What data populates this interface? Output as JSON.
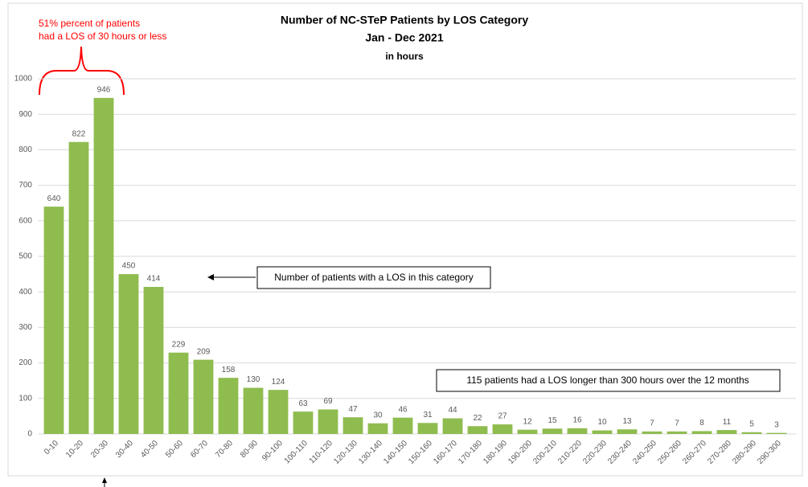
{
  "chart_data": {
    "type": "bar",
    "title": [
      "Number of NC-STeP Patients by LOS Category",
      "Jan - Dec 2021",
      "in hours"
    ],
    "brace_note": [
      "51% percent of patients",
      "had a LOS of 30 hours or less"
    ],
    "arrow_note": "Number of patients with a LOS in this category",
    "box_note": "115 patients had a LOS longer than 300 hours over the 12 months",
    "categories": [
      "0-10",
      "10-20",
      "20-30",
      "30-40",
      "40-50",
      "50-60",
      "60-70",
      "70-80",
      "80-90",
      "90-100",
      "100-110",
      "110-120",
      "120-130",
      "130-140",
      "140-150",
      "150-160",
      "160-170",
      "170-180",
      "180-190",
      "190-200",
      "200-210",
      "210-220",
      "220-230",
      "230-240",
      "240-250",
      "250-260",
      "260-270",
      "270-280",
      "280-290",
      "290-300"
    ],
    "values": [
      640,
      822,
      946,
      450,
      414,
      229,
      209,
      158,
      130,
      124,
      63,
      69,
      47,
      30,
      46,
      31,
      44,
      22,
      27,
      12,
      15,
      16,
      10,
      13,
      7,
      7,
      8,
      11,
      5,
      3
    ],
    "color": "#8fbc4f",
    "ylim": [
      0,
      1000
    ],
    "yticks": [
      0,
      100,
      200,
      300,
      400,
      500,
      600,
      700,
      800,
      900,
      1000
    ],
    "grid": true
  }
}
